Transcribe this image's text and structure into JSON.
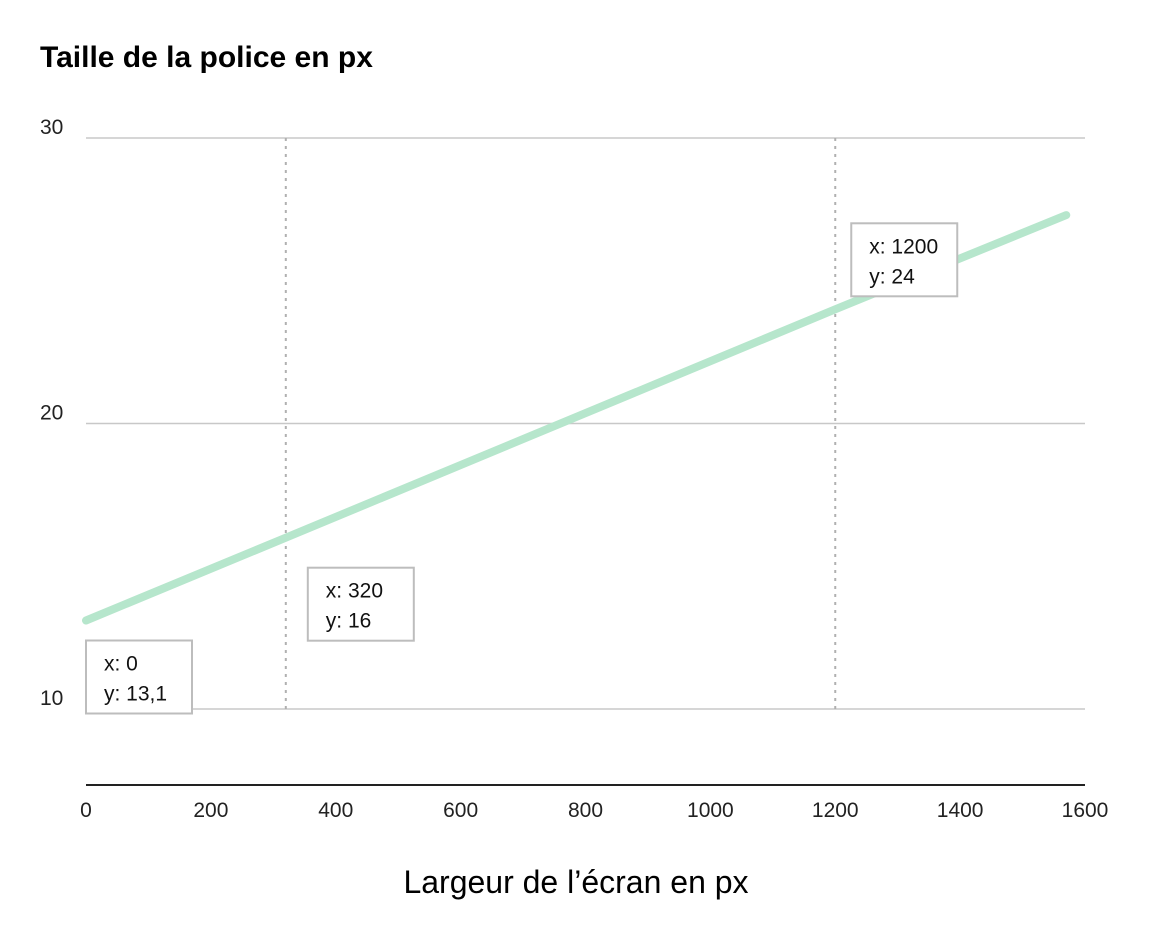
{
  "chart_data": {
    "type": "line",
    "title": "",
    "ylabel": "Taille de la police en px",
    "xlabel": "Largeur de l’écran en px",
    "xlim": [
      0,
      1600
    ],
    "ylim": [
      10,
      30
    ],
    "x_ticks": [
      0,
      200,
      400,
      600,
      800,
      1000,
      1200,
      1400,
      1600
    ],
    "y_ticks": [
      10,
      20,
      30
    ],
    "grid": "horizontal",
    "line_color": "#b6e6cc",
    "series": [
      {
        "x": [
          0,
          320,
          1200,
          1570
        ],
        "y": [
          13.1,
          16,
          24,
          27.3
        ]
      }
    ],
    "reference_lines_x": [
      320,
      1200
    ],
    "annotations": [
      {
        "x": 0,
        "y": 13.1,
        "line1": "x: 0",
        "line2": "y: 13,1"
      },
      {
        "x": 320,
        "y": 16,
        "line1": "x: 320",
        "line2": "y: 16"
      },
      {
        "x": 1200,
        "y": 24,
        "line1": "x: 1200",
        "line2": "y: 24"
      }
    ]
  }
}
